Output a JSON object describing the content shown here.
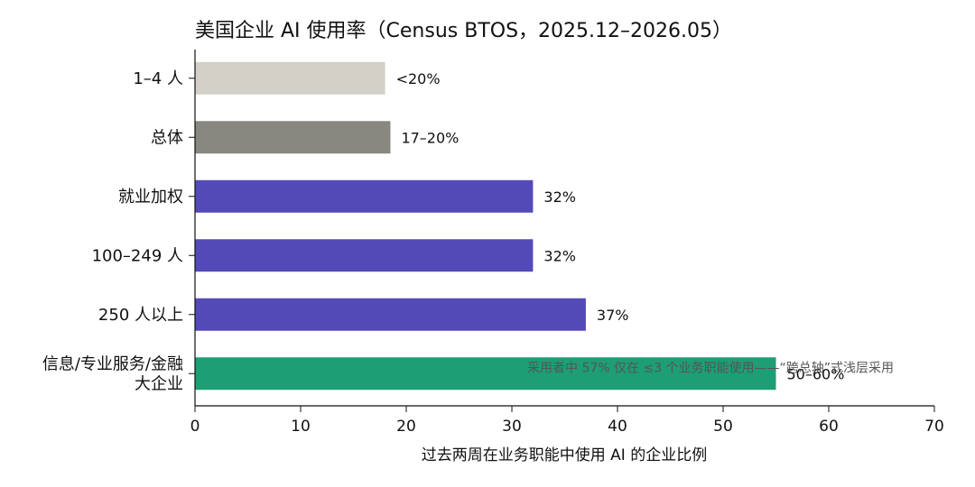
{
  "chart_data": {
    "type": "bar",
    "orientation": "horizontal",
    "title": "美国企业 AI 使用率（Census BTOS，2025.12–2026.05）",
    "xlabel": "过去两周在业务职能中使用 AI 的企业比例",
    "ylabel": "",
    "xlim": [
      0,
      70
    ],
    "xticks": [
      0,
      10,
      20,
      30,
      40,
      50,
      60,
      70
    ],
    "grid": false,
    "categories": [
      {
        "name": "1–4 人",
        "value": 18,
        "label": "<20%",
        "color": "#d3d1c7"
      },
      {
        "name": "总体",
        "value": 18.5,
        "label": "17–20%",
        "color": "#888780"
      },
      {
        "name": "就业加权",
        "value": 32,
        "label": "32%",
        "color": "#534ab7"
      },
      {
        "name": "100–249 人",
        "value": 32,
        "label": "32%",
        "color": "#534ab7"
      },
      {
        "name": "250 人以上",
        "value": 37,
        "label": "37%",
        "color": "#534ab7"
      },
      {
        "name": "信息/专业服务/金融\n大企业",
        "value": 55,
        "label": "50–60%",
        "color": "#1d9e75"
      }
    ],
    "annotation": "采用者中 57% 仅在 ≤3 个业务职能使用——“跨总轴”式浅层采用"
  }
}
